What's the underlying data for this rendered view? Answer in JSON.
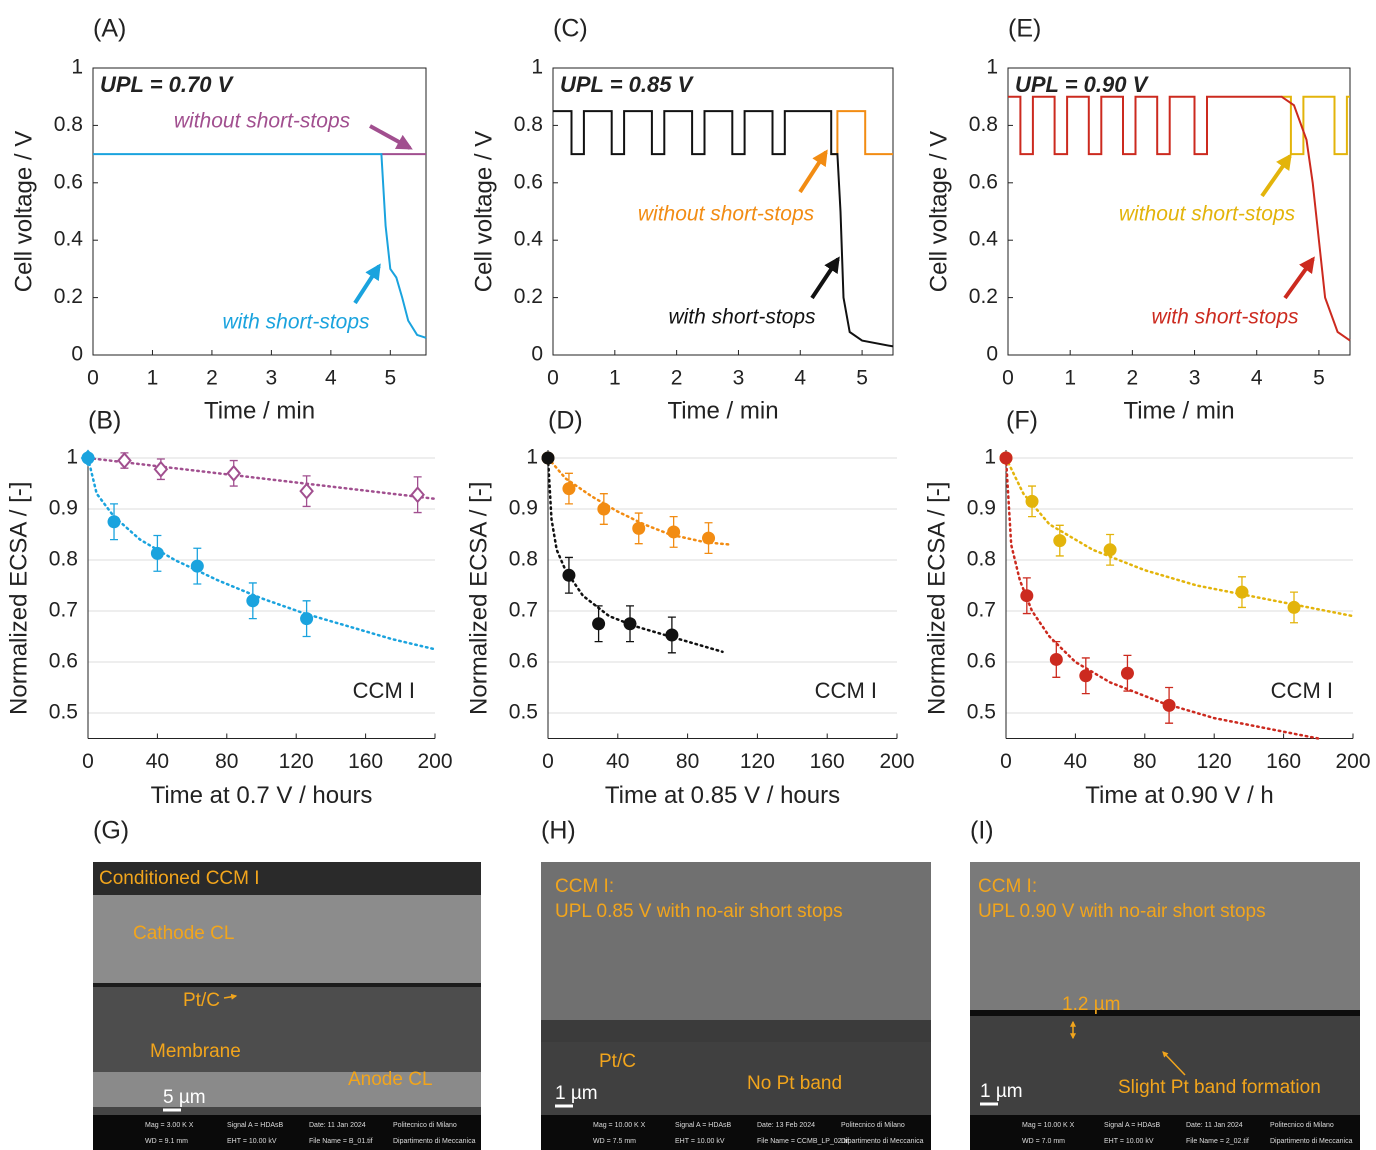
{
  "chart_data": [
    {
      "panel": "(A)",
      "type": "line",
      "annotation": "UPL = 0.70 V",
      "xlabel": "Time / min",
      "ylabel": "Cell voltage / V",
      "xlim": [
        0,
        5.6
      ],
      "xticks": [
        0,
        1,
        2,
        3,
        4,
        5
      ],
      "ylim": [
        0,
        1
      ],
      "yticks": [
        0,
        0.2,
        0.4,
        0.6,
        0.8,
        1
      ],
      "grid": false,
      "box": true,
      "series": [
        {
          "name": "without short-stops",
          "color": "#a14f8f",
          "x": [
            4.85,
            5.6
          ],
          "values": [
            0.7,
            0.7
          ]
        },
        {
          "name": "with short-stops",
          "color": "#1aa3de",
          "x": [
            0,
            4.85,
            4.92,
            5.0,
            5.1,
            5.2,
            5.3,
            5.45,
            5.6
          ],
          "values": [
            0.7,
            0.7,
            0.45,
            0.3,
            0.27,
            0.2,
            0.12,
            0.07,
            0.06
          ]
        }
      ]
    },
    {
      "panel": "(B)",
      "type": "scatter",
      "annotation": "CCM I",
      "xlabel": "Time at 0.7 V / hours",
      "ylabel": "Normalized ECSA / [-]",
      "xlim": [
        0,
        200
      ],
      "xticks": [
        0,
        40,
        80,
        120,
        160,
        200
      ],
      "ylim": [
        0.45,
        1
      ],
      "yticks": [
        0.5,
        0.6,
        0.7,
        0.8,
        0.9,
        1
      ],
      "grid": true,
      "box": false,
      "series": [
        {
          "color": "#a14f8f",
          "marker": "diamond-open",
          "x": [
            0,
            21,
            42,
            84,
            126,
            190
          ],
          "values": [
            1,
            0.995,
            0.978,
            0.97,
            0.935,
            0.928
          ],
          "errors": [
            0,
            0.015,
            0.02,
            0.025,
            0.03,
            0.035
          ],
          "fit": {
            "x": [
              0,
              200
            ],
            "values": [
              1,
              0.92
            ]
          }
        },
        {
          "color": "#1aa3de",
          "marker": "circle",
          "x": [
            0,
            15,
            40,
            63,
            95,
            126
          ],
          "values": [
            1,
            0.875,
            0.813,
            0.788,
            0.72,
            0.685
          ],
          "errors": [
            0,
            0.035,
            0.035,
            0.035,
            0.035,
            0.035
          ],
          "fit": {
            "x": [
              0,
              5,
              15,
              30,
              50,
              75,
              100,
              125,
              150,
              175,
              200
            ],
            "values": [
              1,
              0.93,
              0.885,
              0.84,
              0.8,
              0.76,
              0.725,
              0.695,
              0.67,
              0.645,
              0.625
            ]
          }
        }
      ]
    },
    {
      "panel": "(C)",
      "type": "line",
      "annotation": "UPL = 0.85 V",
      "xlabel": "Time / min",
      "ylabel": "Cell voltage / V",
      "xlim": [
        0,
        5.5
      ],
      "xticks": [
        0,
        1,
        2,
        3,
        4,
        5
      ],
      "ylim": [
        0,
        1
      ],
      "yticks": [
        0,
        0.2,
        0.4,
        0.6,
        0.8,
        1
      ],
      "grid": false,
      "box": true,
      "series": [
        {
          "name": "without short-stops",
          "color": "#f28c13",
          "x": [
            4.5,
            4.6,
            4.6,
            5.05,
            5.05,
            5.5
          ],
          "values": [
            0.7,
            0.7,
            0.85,
            0.85,
            0.7,
            0.7
          ]
        },
        {
          "name": "with short-stops",
          "color": "#111111",
          "x": [
            0,
            0.3,
            0.3,
            0.5,
            0.5,
            0.95,
            0.95,
            1.15,
            1.15,
            1.6,
            1.6,
            1.8,
            1.8,
            2.25,
            2.25,
            2.45,
            2.45,
            2.9,
            2.9,
            3.1,
            3.1,
            3.55,
            3.55,
            3.75,
            3.75,
            4.5,
            4.5,
            4.6,
            4.65,
            4.7,
            4.8,
            5.0,
            5.5
          ],
          "values": [
            0.85,
            0.85,
            0.7,
            0.7,
            0.85,
            0.85,
            0.7,
            0.7,
            0.85,
            0.85,
            0.7,
            0.7,
            0.85,
            0.85,
            0.7,
            0.7,
            0.85,
            0.85,
            0.7,
            0.7,
            0.85,
            0.85,
            0.7,
            0.7,
            0.85,
            0.85,
            0.7,
            0.7,
            0.5,
            0.2,
            0.08,
            0.05,
            0.03
          ]
        }
      ]
    },
    {
      "panel": "(D)",
      "type": "scatter",
      "annotation": "CCM I",
      "xlabel": "Time at 0.85 V / hours",
      "ylabel": "Normalized ECSA / [-]",
      "xlim": [
        0,
        200
      ],
      "xticks": [
        0,
        40,
        80,
        120,
        160,
        200
      ],
      "ylim": [
        0.45,
        1
      ],
      "yticks": [
        0.5,
        0.6,
        0.7,
        0.8,
        0.9,
        1
      ],
      "grid": true,
      "box": false,
      "series": [
        {
          "color": "#f28c13",
          "marker": "circle",
          "x": [
            0,
            12,
            32,
            52,
            72,
            92
          ],
          "values": [
            1,
            0.94,
            0.9,
            0.862,
            0.855,
            0.843
          ],
          "errors": [
            0,
            0.03,
            0.03,
            0.03,
            0.03,
            0.03
          ],
          "fit": {
            "x": [
              0,
              10,
              25,
              40,
              55,
              70,
              90,
              105
            ],
            "values": [
              1,
              0.96,
              0.925,
              0.895,
              0.87,
              0.85,
              0.835,
              0.83
            ]
          }
        },
        {
          "color": "#111111",
          "marker": "circle",
          "x": [
            0,
            12,
            29,
            47,
            71
          ],
          "values": [
            1,
            0.77,
            0.675,
            0.675,
            0.653
          ],
          "errors": [
            0,
            0.035,
            0.035,
            0.035,
            0.035
          ],
          "fit": {
            "x": [
              0,
              2,
              5,
              10,
              20,
              35,
              50,
              70,
              100
            ],
            "values": [
              1,
              0.88,
              0.82,
              0.78,
              0.73,
              0.69,
              0.67,
              0.65,
              0.62
            ]
          }
        }
      ]
    },
    {
      "panel": "(E)",
      "type": "line",
      "annotation": "UPL = 0.90 V",
      "xlabel": "Time / min",
      "ylabel": "Cell voltage / V",
      "xlim": [
        0,
        5.5
      ],
      "xticks": [
        0,
        1,
        2,
        3,
        4,
        5
      ],
      "ylim": [
        0,
        1
      ],
      "yticks": [
        0,
        0.2,
        0.4,
        0.6,
        0.8,
        1
      ],
      "grid": false,
      "box": true,
      "series": [
        {
          "name": "without short-stops",
          "color": "#e3b40b",
          "x": [
            4.4,
            4.55,
            4.55,
            4.75,
            4.75,
            5.25,
            5.25,
            5.45,
            5.45,
            5.5
          ],
          "values": [
            0.9,
            0.9,
            0.7,
            0.7,
            0.9,
            0.9,
            0.7,
            0.7,
            0.9,
            0.9
          ]
        },
        {
          "name": "with short-stops",
          "color": "#cc2a1f",
          "x": [
            0,
            0.2,
            0.2,
            0.4,
            0.4,
            0.75,
            0.75,
            0.95,
            0.95,
            1.3,
            1.3,
            1.5,
            1.5,
            1.85,
            1.85,
            2.05,
            2.05,
            2.4,
            2.4,
            2.6,
            2.6,
            3.0,
            3.0,
            3.2,
            3.2,
            4.4,
            4.6,
            4.8,
            4.9,
            5.0,
            5.1,
            5.3,
            5.5
          ],
          "values": [
            0.9,
            0.9,
            0.7,
            0.7,
            0.9,
            0.9,
            0.7,
            0.7,
            0.9,
            0.9,
            0.7,
            0.7,
            0.9,
            0.9,
            0.7,
            0.7,
            0.9,
            0.9,
            0.7,
            0.7,
            0.9,
            0.9,
            0.7,
            0.7,
            0.9,
            0.9,
            0.87,
            0.75,
            0.6,
            0.4,
            0.2,
            0.08,
            0.05
          ]
        }
      ]
    },
    {
      "panel": "(F)",
      "type": "scatter",
      "annotation": "CCM I",
      "xlabel": "Time at 0.90 V / h",
      "ylabel": "Normalized ECSA / [-]",
      "xlim": [
        0,
        200
      ],
      "xticks": [
        0,
        40,
        80,
        120,
        160,
        200
      ],
      "ylim": [
        0.45,
        1
      ],
      "yticks": [
        0.5,
        0.6,
        0.7,
        0.8,
        0.9,
        1
      ],
      "grid": true,
      "box": false,
      "series": [
        {
          "color": "#e3b40b",
          "marker": "circle",
          "x": [
            0,
            15,
            31,
            60,
            136,
            166
          ],
          "values": [
            1,
            0.915,
            0.838,
            0.82,
            0.737,
            0.707
          ],
          "errors": [
            0,
            0.03,
            0.03,
            0.03,
            0.03,
            0.03
          ],
          "fit": {
            "x": [
              0,
              10,
              25,
              50,
              80,
              110,
              140,
              170,
              200
            ],
            "values": [
              1,
              0.93,
              0.87,
              0.82,
              0.78,
              0.75,
              0.73,
              0.71,
              0.69
            ]
          }
        },
        {
          "color": "#cc2a1f",
          "marker": "circle",
          "x": [
            0,
            12,
            29,
            46,
            70,
            94
          ],
          "values": [
            1,
            0.73,
            0.605,
            0.573,
            0.578,
            0.515
          ],
          "errors": [
            0,
            0.035,
            0.035,
            0.035,
            0.035,
            0.035
          ],
          "fit": {
            "x": [
              0,
              3,
              8,
              15,
              25,
              40,
              60,
              90,
              120,
              150,
              180
            ],
            "values": [
              1,
              0.83,
              0.76,
              0.7,
              0.65,
              0.6,
              0.56,
              0.52,
              0.49,
              0.47,
              0.45
            ]
          }
        }
      ]
    }
  ],
  "images": [
    {
      "panel": "(G)",
      "labels": [
        "Conditioned CCM I",
        "Cathode CL",
        "Pt/C",
        "Membrane",
        "Anode CL"
      ],
      "scale_bar": "5 µm",
      "info": [
        "Mag = 3.00 K X",
        "Signal A = HDAsB",
        "Date: 11 Jan 2024",
        "Politecnico di Milano",
        "WD = 9.1 mm",
        "EHT = 10.00 kV",
        "File Name = B_01.tif",
        "Dipartimento di Meccanica"
      ]
    },
    {
      "panel": "(H)",
      "labels": [
        "CCM I:",
        "UPL 0.85 V with no-air short stops",
        "Pt/C",
        "No Pt band"
      ],
      "scale_bar": "1 µm",
      "info": [
        "Mag = 10.00 K X",
        "Signal A = HDAsB",
        "Date: 13 Feb 2024",
        "Politecnico di Milano",
        "WD = 7.5 mm",
        "EHT = 10.00 kV",
        "File Name = CCMB_LP_02.tif",
        "Dipartimento di Meccanica"
      ]
    },
    {
      "panel": "(I)",
      "labels": [
        "CCM I:",
        "UPL 0.90 V with no-air short stops",
        "1.2 µm",
        "Slight Pt band formation"
      ],
      "scale_bar": "1 µm",
      "info": [
        "Mag = 10.00 K X",
        "Signal A = HDAsB",
        "Date: 11 Jan 2024",
        "Politecnico di Milano",
        "WD = 7.0 mm",
        "EHT = 10.00 kV",
        "File Name = 2_02.tif",
        "Dipartimento di Meccanica"
      ]
    }
  ]
}
